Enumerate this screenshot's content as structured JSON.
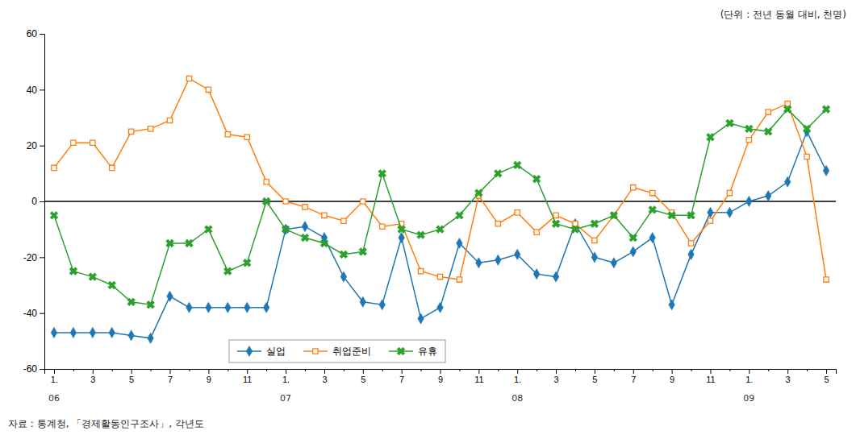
{
  "chart_data": {
    "type": "line",
    "title": "(단위 : 전년 동월 대비, 천명)",
    "footnote": "자료 : 통계청, 「경제활동인구조사」, 각년도",
    "categories": [
      "1.",
      null,
      "3",
      null,
      "5",
      null,
      "7",
      null,
      "9",
      null,
      "11",
      null,
      "1.",
      null,
      "3",
      null,
      "5",
      null,
      "7",
      null,
      "9",
      null,
      "11",
      null,
      "1.",
      null,
      "3",
      null,
      "5",
      null,
      "7",
      null,
      "9",
      null,
      "11",
      null,
      "1.",
      null,
      "3",
      null,
      "5"
    ],
    "annotations": [
      {
        "text": "06",
        "category": 0
      },
      {
        "text": "07",
        "category": 12
      },
      {
        "text": "08",
        "category": 24
      },
      {
        "text": "09",
        "category": 36
      }
    ],
    "ylim": [
      -60,
      60
    ],
    "yticks": [
      -60,
      -40,
      -20,
      0,
      20,
      40,
      60
    ],
    "grid": false,
    "legend": "bottom",
    "series": [
      {
        "name": "실업",
        "marker": "diamond",
        "values": [
          -47,
          -47,
          -47,
          -47,
          -48,
          -49,
          -34,
          -38,
          -38,
          -38,
          -38,
          -38,
          -10,
          -9,
          -13,
          -27,
          -36,
          -37,
          -13,
          -42,
          -38,
          -15,
          -22,
          -21,
          -19,
          -26,
          -27,
          -8,
          -20,
          -22,
          -18,
          -13,
          -37,
          -19,
          -4,
          -4,
          0,
          2,
          7,
          25,
          11
        ]
      },
      {
        "name": "취업준비",
        "marker": "square",
        "values": [
          12,
          21,
          21,
          12,
          25,
          26,
          29,
          44,
          40,
          24,
          23,
          7,
          0,
          -2,
          -5,
          -7,
          0,
          -9,
          -8,
          -25,
          -27,
          -28,
          2,
          -8,
          -4,
          -11,
          -5,
          -8,
          -14,
          -5,
          5,
          3,
          -4,
          -15,
          -7,
          3,
          22,
          32,
          35,
          16,
          -28
        ]
      },
      {
        "name": "유휴",
        "marker": "x",
        "values": [
          -5,
          -25,
          -27,
          -30,
          -36,
          -37,
          -15,
          -15,
          -10,
          -25,
          -22,
          0,
          -10,
          -13,
          -15,
          -19,
          -18,
          10,
          -10,
          -12,
          -10,
          -5,
          3,
          10,
          13,
          8,
          -8,
          -10,
          -8,
          -5,
          -13,
          -3,
          -5,
          -5,
          23,
          28,
          26,
          25,
          33,
          26,
          33
        ]
      }
    ]
  }
}
